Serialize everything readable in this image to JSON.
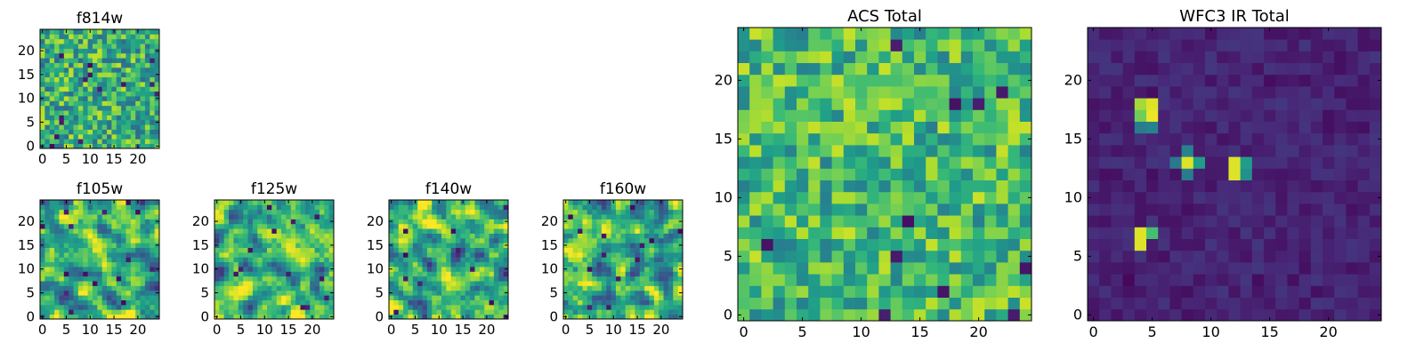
{
  "colormap": {
    "name": "viridis",
    "stops": [
      "#440154",
      "#482878",
      "#3e4989",
      "#31688e",
      "#26828e",
      "#1f9e89",
      "#35b779",
      "#6ece58",
      "#b5de2b",
      "#fde725"
    ]
  },
  "axes_style": {
    "frame_color": "#000000",
    "text_color": "#000000",
    "background": "#ffffff"
  },
  "chart_data": [
    {
      "type": "heatmap",
      "title": "f814w",
      "size": 25,
      "x_ticks": [
        "0",
        "5",
        "10",
        "15",
        "20"
      ],
      "y_ticks": [
        "0",
        "5",
        "10",
        "15",
        "20"
      ],
      "xlim": [
        -0.5,
        24.5
      ],
      "ylim": [
        -0.5,
        24.5
      ],
      "grid": false,
      "noise": {
        "seed": 814,
        "mean": 0.62,
        "spread": 0.3,
        "smooth": 0
      },
      "hotspots": []
    },
    {
      "type": "heatmap",
      "title": "f105w",
      "size": 25,
      "x_ticks": [
        "0",
        "5",
        "10",
        "15",
        "20"
      ],
      "y_ticks": [
        "0",
        "5",
        "10",
        "15",
        "20"
      ],
      "xlim": [
        -0.5,
        24.5
      ],
      "ylim": [
        -0.5,
        24.5
      ],
      "grid": false,
      "noise": {
        "seed": 105,
        "mean": 0.62,
        "spread": 0.34,
        "smooth": 1
      },
      "hotspots": []
    },
    {
      "type": "heatmap",
      "title": "f125w",
      "size": 25,
      "x_ticks": [
        "0",
        "5",
        "10",
        "15",
        "20"
      ],
      "y_ticks": [
        "0",
        "5",
        "10",
        "15",
        "20"
      ],
      "xlim": [
        -0.5,
        24.5
      ],
      "ylim": [
        -0.5,
        24.5
      ],
      "grid": false,
      "noise": {
        "seed": 125,
        "mean": 0.66,
        "spread": 0.32,
        "smooth": 1
      },
      "hotspots": []
    },
    {
      "type": "heatmap",
      "title": "f140w",
      "size": 25,
      "x_ticks": [
        "0",
        "5",
        "10",
        "15",
        "20"
      ],
      "y_ticks": [
        "0",
        "5",
        "10",
        "15",
        "20"
      ],
      "xlim": [
        -0.5,
        24.5
      ],
      "ylim": [
        -0.5,
        24.5
      ],
      "grid": false,
      "noise": {
        "seed": 140,
        "mean": 0.64,
        "spread": 0.34,
        "smooth": 1
      },
      "hotspots": []
    },
    {
      "type": "heatmap",
      "title": "f160w",
      "size": 25,
      "x_ticks": [
        "0",
        "5",
        "10",
        "15",
        "20"
      ],
      "y_ticks": [
        "0",
        "5",
        "10",
        "15",
        "20"
      ],
      "xlim": [
        -0.5,
        24.5
      ],
      "ylim": [
        -0.5,
        24.5
      ],
      "grid": false,
      "noise": {
        "seed": 160,
        "mean": 0.62,
        "spread": 0.34,
        "smooth": 1
      },
      "hotspots": []
    },
    {
      "type": "heatmap",
      "title": "ACS Total",
      "size": 25,
      "x_ticks": [
        "0",
        "5",
        "10",
        "15",
        "20"
      ],
      "y_ticks": [
        "0",
        "5",
        "10",
        "15",
        "20"
      ],
      "xlim": [
        -0.5,
        24.5
      ],
      "ylim": [
        -0.5,
        24.5
      ],
      "grid": false,
      "noise": {
        "seed": 777,
        "mean": 0.68,
        "spread": 0.26,
        "smooth": 0
      },
      "hotspots": []
    },
    {
      "type": "heatmap",
      "title": "WFC3 IR Total",
      "size": 25,
      "x_ticks": [
        "0",
        "5",
        "10",
        "15",
        "20"
      ],
      "y_ticks": [
        "0",
        "5",
        "10",
        "15",
        "20"
      ],
      "xlim": [
        -0.5,
        24.5
      ],
      "ylim": [
        -0.5,
        24.5
      ],
      "grid": false,
      "noise": {
        "seed": 333,
        "mean": 0.1,
        "spread": 0.06,
        "smooth": 0
      },
      "hotspots": [
        {
          "x": 4,
          "y": 17,
          "v": 0.78
        },
        {
          "x": 5,
          "y": 17,
          "v": 0.97
        },
        {
          "x": 4,
          "y": 18,
          "v": 0.86
        },
        {
          "x": 5,
          "y": 18,
          "v": 0.95
        },
        {
          "x": 4,
          "y": 16,
          "v": 0.42
        },
        {
          "x": 5,
          "y": 16,
          "v": 0.45
        },
        {
          "x": 7,
          "y": 13,
          "v": 0.4
        },
        {
          "x": 8,
          "y": 13,
          "v": 0.95
        },
        {
          "x": 9,
          "y": 13,
          "v": 0.55
        },
        {
          "x": 8,
          "y": 14,
          "v": 0.45
        },
        {
          "x": 8,
          "y": 12,
          "v": 0.42
        },
        {
          "x": 12,
          "y": 12,
          "v": 0.95
        },
        {
          "x": 12,
          "y": 13,
          "v": 0.95
        },
        {
          "x": 13,
          "y": 12,
          "v": 0.5
        },
        {
          "x": 13,
          "y": 13,
          "v": 0.55
        },
        {
          "x": 4,
          "y": 6,
          "v": 0.95
        },
        {
          "x": 4,
          "y": 7,
          "v": 0.95
        },
        {
          "x": 5,
          "y": 7,
          "v": 0.7
        }
      ]
    }
  ]
}
